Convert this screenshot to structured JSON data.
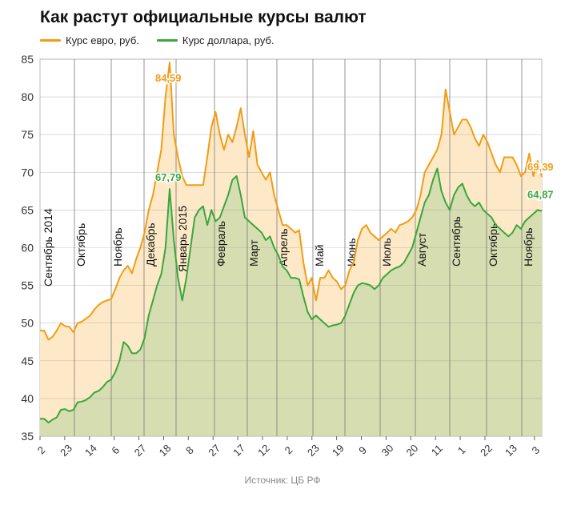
{
  "colors": {
    "euro": "#f39c12",
    "euro_fill": "#fde9c7",
    "dollar": "#3aa640",
    "dollar_fill": "#d6ddb1",
    "grid": "#999999",
    "month_line": "#777777"
  },
  "chart_data": {
    "type": "area",
    "title": "Как растут официальные курсы валют",
    "source": "Источник: ЦБ РФ",
    "ylim": [
      35,
      85
    ],
    "yticks": [
      35,
      40,
      45,
      50,
      55,
      60,
      65,
      70,
      75,
      80,
      85
    ],
    "grid": true,
    "legend_position": "top-left",
    "xticks": [
      "2",
      "23",
      "14",
      "6",
      "27",
      "18",
      "8",
      "27",
      "17",
      "12",
      "2",
      "23",
      "19",
      "9",
      "30",
      "20",
      "11",
      "1",
      "22",
      "13",
      "3"
    ],
    "month_labels": [
      "Сентябрь 2014",
      "Октябрь",
      "Ноябрь",
      "Декабрь",
      "Январь 2015",
      "Февраль",
      "Март",
      "Апрель",
      "Май",
      "Июнь",
      "Июль",
      "Август",
      "Сентябрь",
      "Октябрь",
      "Ноябрь"
    ],
    "series": [
      {
        "name": "Курс евро, руб.",
        "last_label": "69,39",
        "peak_label": "84,59",
        "values": [
          49.0,
          49.0,
          47.8,
          48.2,
          49.0,
          50.0,
          49.6,
          49.5,
          48.8,
          50.0,
          50.2,
          50.6,
          51.0,
          51.8,
          52.4,
          52.8,
          53.0,
          53.2,
          54.5,
          56.0,
          57.0,
          57.6,
          56.6,
          58.5,
          60.0,
          62.0,
          65.0,
          67.0,
          70.0,
          73.0,
          80.0,
          84.59,
          75.0,
          72.0,
          69.5,
          68.3,
          68.3,
          68.3,
          68.3,
          68.3,
          72.0,
          76.0,
          78.0,
          75.0,
          73.0,
          75.0,
          74.0,
          76.0,
          78.5,
          75.0,
          72.0,
          75.5,
          71.0,
          70.0,
          69.0,
          70.0,
          67.0,
          65.0,
          63.0,
          63.0,
          62.5,
          62.0,
          62.3,
          58.0,
          55.0,
          56.0,
          53.0,
          56.0,
          56.0,
          57.0,
          56.0,
          55.5,
          54.5,
          55.0,
          57.0,
          58.0,
          61.0,
          62.5,
          63.0,
          62.0,
          61.5,
          61.0,
          61.5,
          62.0,
          62.5,
          62.0,
          63.0,
          63.2,
          63.5,
          64.0,
          65.0,
          67.0,
          70.0,
          71.0,
          72.0,
          73.0,
          75.0,
          81.0,
          78.0,
          75.0,
          76.0,
          77.0,
          77.0,
          76.0,
          74.5,
          73.5,
          75.0,
          74.0,
          72.5,
          71.0,
          70.0,
          72.0,
          72.0,
          72.0,
          71.0,
          69.5,
          70.0,
          72.5,
          69.5,
          71.5,
          69.39
        ]
      },
      {
        "name": "Курс доллара, руб.",
        "last_label": "64,87",
        "peak_label": "67,79",
        "values": [
          37.3,
          37.3,
          36.8,
          37.2,
          37.5,
          38.5,
          38.6,
          38.3,
          38.5,
          39.5,
          39.6,
          39.8,
          40.2,
          40.8,
          41.0,
          41.5,
          42.2,
          42.5,
          43.5,
          45.0,
          47.5,
          47.0,
          46.0,
          46.0,
          46.5,
          48.0,
          51.0,
          53.0,
          55.0,
          56.5,
          60.0,
          67.79,
          61.0,
          56.0,
          53.0,
          56.0,
          60.0,
          64.0,
          65.0,
          65.5,
          63.0,
          65.0,
          63.5,
          64.0,
          65.5,
          67.0,
          69.0,
          69.5,
          67.0,
          64.0,
          63.5,
          63.0,
          62.5,
          62.0,
          61.0,
          61.5,
          60.0,
          59.0,
          57.5,
          57.0,
          56.0,
          56.0,
          55.8,
          53.5,
          51.5,
          50.5,
          51.0,
          50.5,
          50.0,
          49.5,
          49.7,
          49.8,
          50.0,
          51.0,
          52.5,
          54.0,
          55.0,
          55.3,
          55.2,
          55.0,
          54.5,
          55.0,
          56.0,
          56.5,
          57.0,
          57.3,
          57.5,
          58.0,
          59.0,
          60.0,
          62.0,
          64.0,
          66.0,
          67.0,
          69.0,
          70.5,
          67.5,
          66.0,
          65.0,
          67.0,
          68.0,
          68.5,
          67.0,
          66.0,
          65.5,
          66.0,
          65.0,
          64.5,
          64.0,
          63.0,
          62.5,
          62.0,
          61.5,
          62.0,
          63.0,
          62.5,
          63.5,
          64.0,
          64.5,
          65.0,
          64.87
        ]
      }
    ]
  }
}
